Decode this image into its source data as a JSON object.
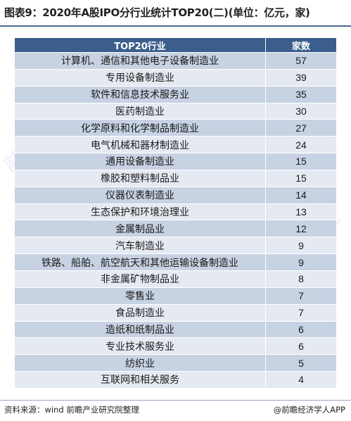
{
  "title": "图表9：2020年A股IPO分行业统计TOP20(二)(单位：亿元，家)",
  "table": {
    "headers": [
      "TOP20行业",
      "家数"
    ],
    "rows": [
      {
        "industry": "计算机、通信和其他电子设备制造业",
        "count": "57"
      },
      {
        "industry": "专用设备制造业",
        "count": "39"
      },
      {
        "industry": "软件和信息技术服务业",
        "count": "35"
      },
      {
        "industry": "医药制造业",
        "count": "30"
      },
      {
        "industry": "化学原料和化学制品制造业",
        "count": "27"
      },
      {
        "industry": "电气机械和器材制造业",
        "count": "24"
      },
      {
        "industry": "通用设备制造业",
        "count": "15"
      },
      {
        "industry": "橡胶和塑料制品业",
        "count": "15"
      },
      {
        "industry": "仪器仪表制造业",
        "count": "14"
      },
      {
        "industry": "生态保护和环境治理业",
        "count": "13"
      },
      {
        "industry": "金属制品业",
        "count": "12"
      },
      {
        "industry": "汽车制造业",
        "count": "9"
      },
      {
        "industry": "铁路、船舶、航空航天和其他运输设备制造业",
        "count": "9"
      },
      {
        "industry": "非金属矿物制品业",
        "count": "8"
      },
      {
        "industry": "零售业",
        "count": "7"
      },
      {
        "industry": "食品制造业",
        "count": "7"
      },
      {
        "industry": "造纸和纸制品业",
        "count": "6"
      },
      {
        "industry": "专业技术服务业",
        "count": "6"
      },
      {
        "industry": "纺织业",
        "count": "5"
      },
      {
        "industry": "互联网和相关服务",
        "count": "4"
      }
    ]
  },
  "footer": {
    "source": "资料来源：wind 前瞻产业研究院整理",
    "brand": "@前瞻经济学人APP"
  },
  "watermark_text": "前瞻产业研究院",
  "colors": {
    "header_bg": "#3b5e8c",
    "row_dark": "#c7d2e3",
    "row_light": "#e5eaf2"
  }
}
